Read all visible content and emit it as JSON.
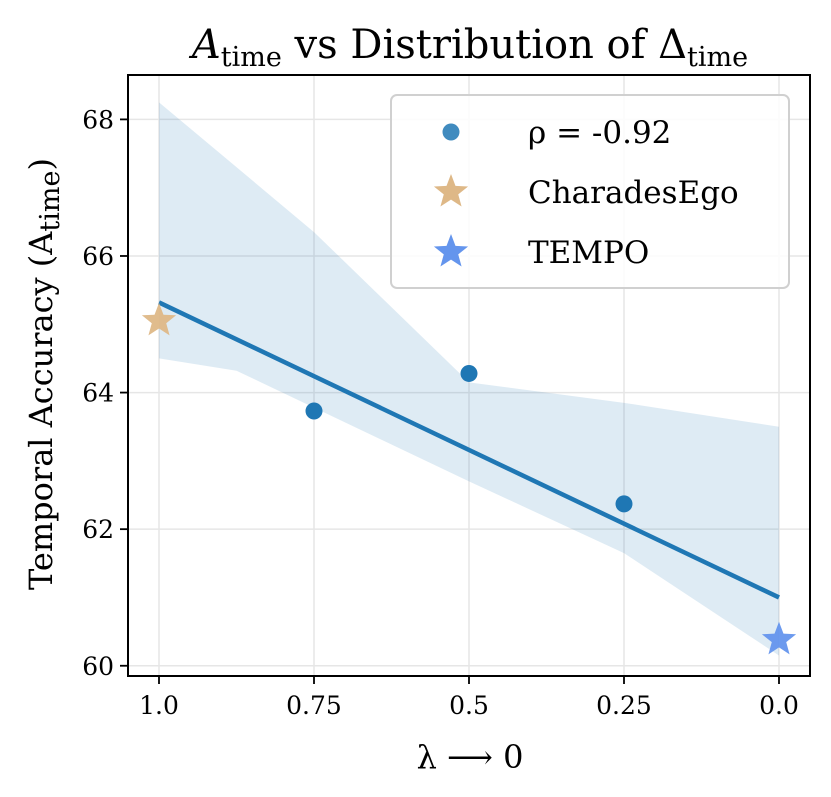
{
  "chart_data": {
    "type": "scatter",
    "title": {
      "prefix": "A",
      "prefix_sub": "time",
      "middle": " vs Distribution of Δ",
      "suffix_sub": "time"
    },
    "xlabel": "λ ⟶ 0",
    "ylabel": {
      "text": "Temporal Accuracy (A",
      "sub": "time",
      "close": ")"
    },
    "x_inverted": true,
    "xlim": [
      1.05,
      -0.05
    ],
    "ylim": [
      59.85,
      68.65
    ],
    "xticks": [
      1.0,
      0.75,
      0.5,
      0.25,
      0.0
    ],
    "xtick_labels": [
      "1.0",
      "0.75",
      "0.5",
      "0.25",
      "0.0"
    ],
    "yticks": [
      60,
      62,
      64,
      66,
      68
    ],
    "ytick_labels": [
      "60",
      "62",
      "64",
      "66",
      "68"
    ],
    "grid": true,
    "series": [
      {
        "name": "ρ = -0.92",
        "kind": "points",
        "marker": "circle",
        "color": "#1f77b4",
        "points": [
          {
            "x": 0.75,
            "y": 63.73
          },
          {
            "x": 0.5,
            "y": 64.28
          },
          {
            "x": 0.25,
            "y": 62.37
          }
        ]
      },
      {
        "name": "CharadesEgo",
        "kind": "points",
        "marker": "star",
        "color": "#deb887",
        "points": [
          {
            "x": 1.0,
            "y": 65.05
          }
        ]
      },
      {
        "name": "TEMPO",
        "kind": "points",
        "marker": "star",
        "color": "#6495ed",
        "points": [
          {
            "x": 0.0,
            "y": 60.38
          }
        ]
      }
    ],
    "regression": {
      "color": "#1f77b4",
      "line": [
        {
          "x": 1.0,
          "y": 65.32
        },
        {
          "x": 0.0,
          "y": 61.0
        }
      ],
      "band_color": "#1f77b4",
      "band_upper": [
        {
          "x": 1.0,
          "y": 68.25
        },
        {
          "x": 0.75,
          "y": 66.35
        },
        {
          "x": 0.5,
          "y": 64.15
        },
        {
          "x": 0.25,
          "y": 63.85
        },
        {
          "x": 0.0,
          "y": 63.5
        }
      ],
      "band_lower": [
        {
          "x": 0.0,
          "y": 60.15
        },
        {
          "x": 0.25,
          "y": 61.65
        },
        {
          "x": 0.5,
          "y": 62.7
        },
        {
          "x": 0.875,
          "y": 64.32
        },
        {
          "x": 1.0,
          "y": 64.5
        }
      ]
    },
    "legend": {
      "position": "top-right",
      "entries": [
        {
          "label": "ρ = -0.92",
          "marker": "circle",
          "color": "#1f77b4"
        },
        {
          "label": "CharadesEgo",
          "marker": "star",
          "color": "#deb887"
        },
        {
          "label": "TEMPO",
          "marker": "star",
          "color": "#6495ed"
        }
      ]
    }
  }
}
